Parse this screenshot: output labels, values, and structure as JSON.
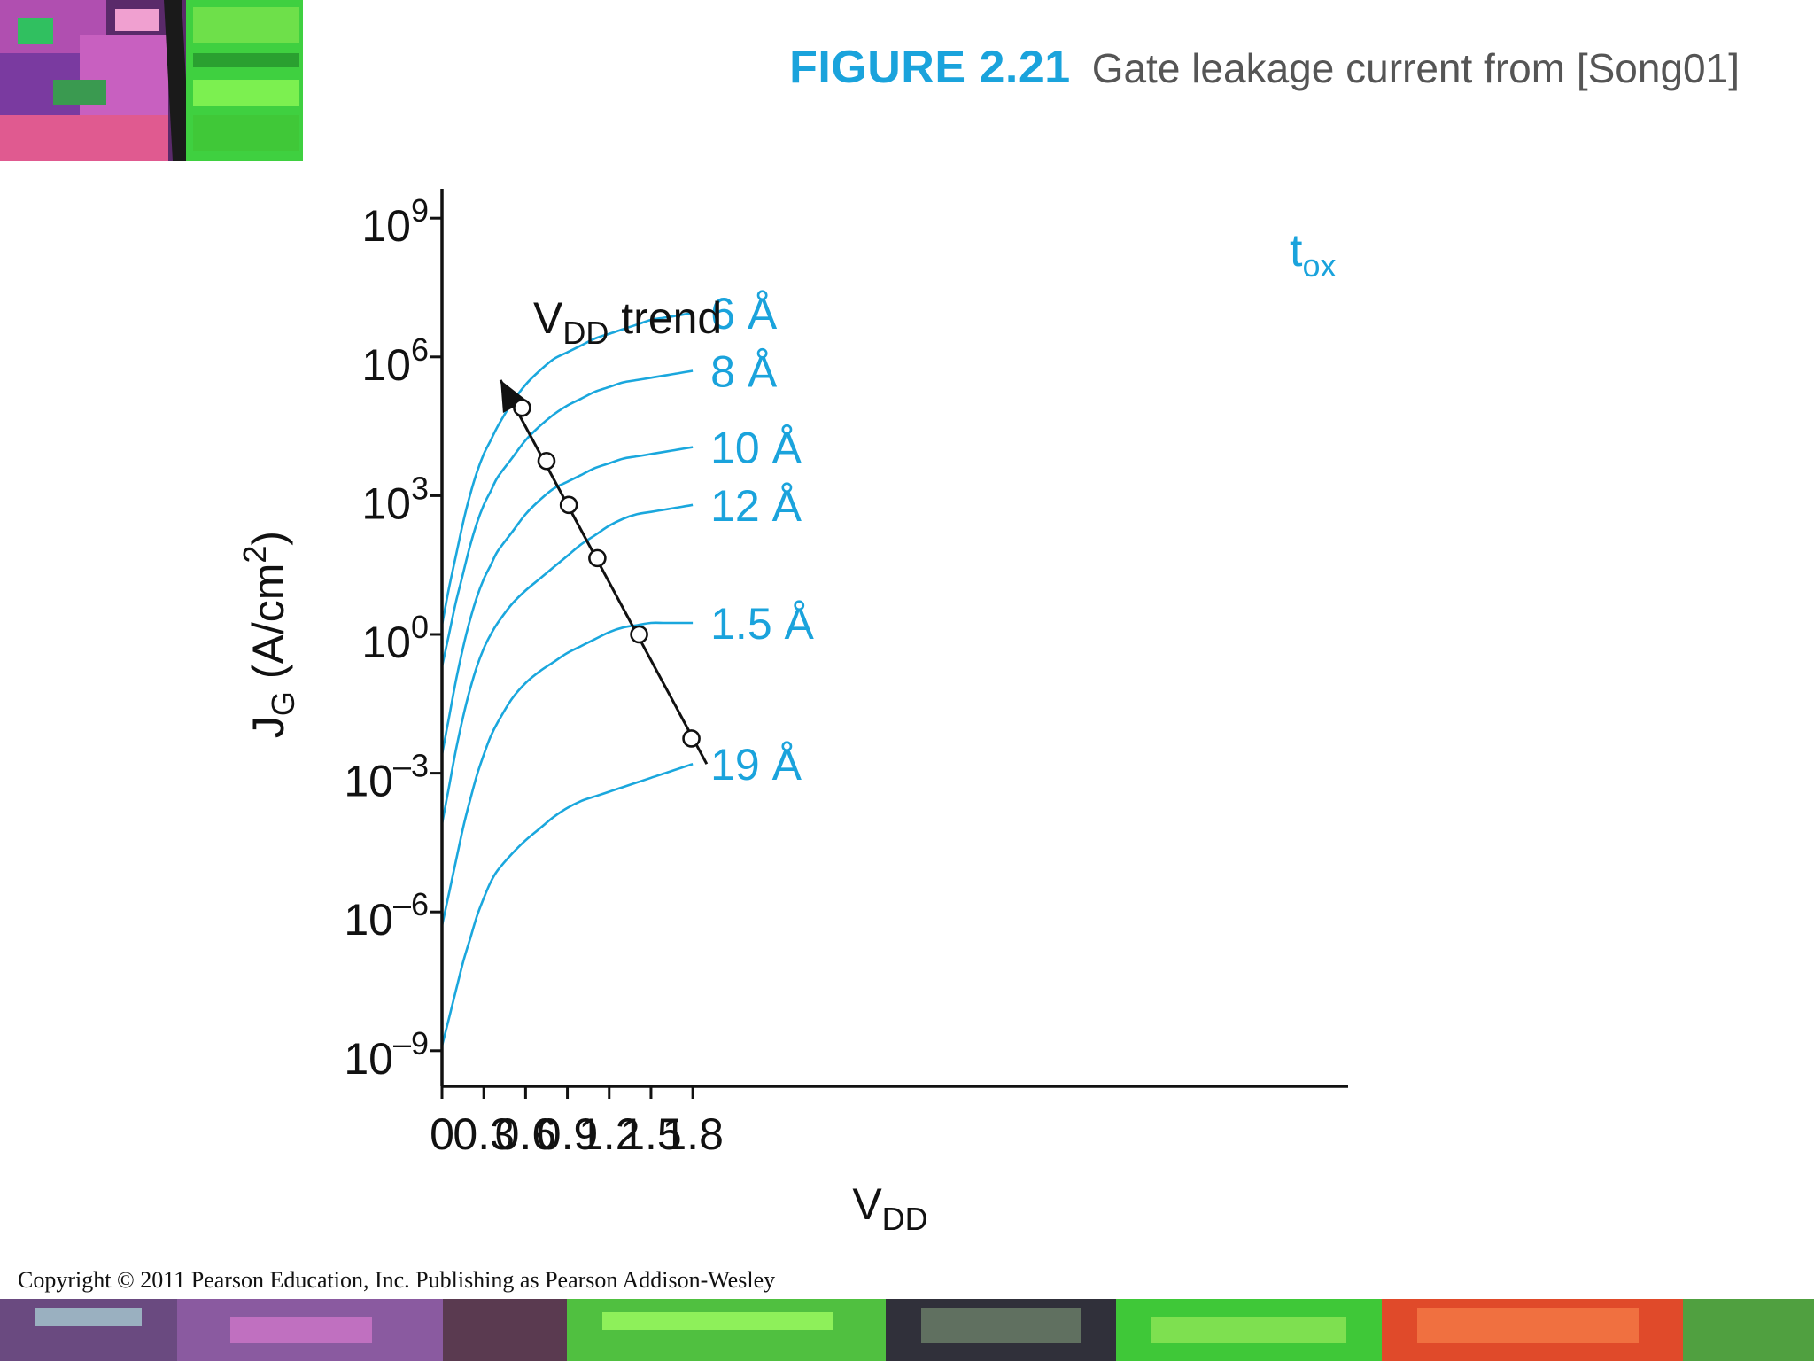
{
  "header": {
    "figure_number": "FIGURE 2.21",
    "caption": "Gate leakage current from [Song01]"
  },
  "footer": {
    "copyright": "Copyright © 2011 Pearson Education, Inc. Publishing as Pearson Addison-Wesley"
  },
  "colors": {
    "accent": "#1aa3dc",
    "curve": "#1aa7dd",
    "axis": "#111111",
    "caption": "#555555"
  },
  "chart_data": {
    "type": "line",
    "y_scale": "log10",
    "xlabel": "V",
    "xlabel_sub": "DD",
    "ylabel": "J",
    "ylabel_sub": "G",
    "ylabel_rest": " (A/cm",
    "ylabel_sup": "2",
    "ylabel_end": ")",
    "xlim": [
      0,
      1.95
    ],
    "ylim_exp": [
      -9.7,
      9.6
    ],
    "x_ticks": [
      {
        "value": 0,
        "label": "0"
      },
      {
        "value": 0.3,
        "label": "0.3"
      },
      {
        "value": 0.6,
        "label": "0.6"
      },
      {
        "value": 0.9,
        "label": "0.9"
      },
      {
        "value": 1.2,
        "label": "1.2"
      },
      {
        "value": 1.5,
        "label": "1.5"
      },
      {
        "value": 1.8,
        "label": "1.8"
      }
    ],
    "y_ticks": [
      {
        "value": 9,
        "base": "10",
        "exp": "9"
      },
      {
        "value": 6,
        "base": "10",
        "exp": "6"
      },
      {
        "value": 3,
        "base": "10",
        "exp": "3"
      },
      {
        "value": 0,
        "base": "10",
        "exp": "0"
      },
      {
        "value": -3,
        "base": "10",
        "exp": "–3"
      },
      {
        "value": -6,
        "base": "10",
        "exp": "–6"
      },
      {
        "value": -9,
        "base": "10",
        "exp": "–9"
      }
    ],
    "legend_title": "t",
    "legend_title_sub": "ox",
    "x": [
      0,
      0.05,
      0.1,
      0.15,
      0.2,
      0.25,
      0.3,
      0.35,
      0.4,
      0.5,
      0.6,
      0.7,
      0.8,
      0.9,
      1.0,
      1.1,
      1.2,
      1.3,
      1.4,
      1.5,
      1.6,
      1.7,
      1.8
    ],
    "series": [
      {
        "name": "6 Å",
        "values": [
          0.2,
          1.0,
          1.7,
          2.4,
          3.0,
          3.5,
          3.9,
          4.2,
          4.5,
          5.0,
          5.4,
          5.7,
          5.95,
          6.1,
          6.25,
          6.4,
          6.5,
          6.6,
          6.7,
          6.8,
          6.85,
          6.9,
          6.95
        ]
      },
      {
        "name": "8 Å",
        "values": [
          -0.7,
          0.0,
          0.7,
          1.3,
          1.9,
          2.4,
          2.8,
          3.1,
          3.4,
          3.8,
          4.2,
          4.5,
          4.75,
          4.95,
          5.1,
          5.25,
          5.35,
          5.45,
          5.5,
          5.55,
          5.6,
          5.65,
          5.7
        ]
      },
      {
        "name": "10 Å",
        "values": [
          -2.6,
          -1.8,
          -1.0,
          -0.3,
          0.3,
          0.8,
          1.2,
          1.5,
          1.8,
          2.2,
          2.6,
          2.9,
          3.15,
          3.3,
          3.45,
          3.6,
          3.7,
          3.8,
          3.85,
          3.9,
          3.95,
          4.0,
          4.05
        ]
      },
      {
        "name": "12 Å",
        "values": [
          -4.1,
          -3.3,
          -2.5,
          -1.8,
          -1.2,
          -0.7,
          -0.3,
          0.0,
          0.25,
          0.65,
          0.95,
          1.2,
          1.45,
          1.7,
          1.95,
          2.15,
          2.35,
          2.5,
          2.6,
          2.65,
          2.7,
          2.75,
          2.8
        ]
      },
      {
        "name": "1.5 Å",
        "values": [
          -6.3,
          -5.6,
          -4.9,
          -4.2,
          -3.6,
          -3.05,
          -2.6,
          -2.2,
          -1.9,
          -1.4,
          -1.05,
          -0.8,
          -0.6,
          -0.4,
          -0.25,
          -0.1,
          0.05,
          0.15,
          0.2,
          0.25,
          0.25,
          0.25,
          0.25
        ]
      },
      {
        "name": "19 Å",
        "values": [
          -8.9,
          -8.3,
          -7.7,
          -7.1,
          -6.6,
          -6.1,
          -5.7,
          -5.35,
          -5.1,
          -4.75,
          -4.45,
          -4.2,
          -3.95,
          -3.75,
          -3.6,
          -3.5,
          -3.4,
          -3.3,
          -3.2,
          -3.1,
          -3.0,
          -2.9,
          -2.8
        ]
      }
    ],
    "trend": {
      "label": "V",
      "label_sub": "DD",
      "label_rest": " trend",
      "line": [
        [
          1.9,
          -2.8
        ],
        [
          0.42,
          5.5
        ]
      ],
      "markers": [
        [
          0.575,
          4.9
        ],
        [
          0.75,
          3.75
        ],
        [
          0.91,
          2.8
        ],
        [
          1.115,
          1.65
        ],
        [
          1.415,
          0.0
        ],
        [
          1.79,
          -2.25
        ]
      ]
    }
  }
}
